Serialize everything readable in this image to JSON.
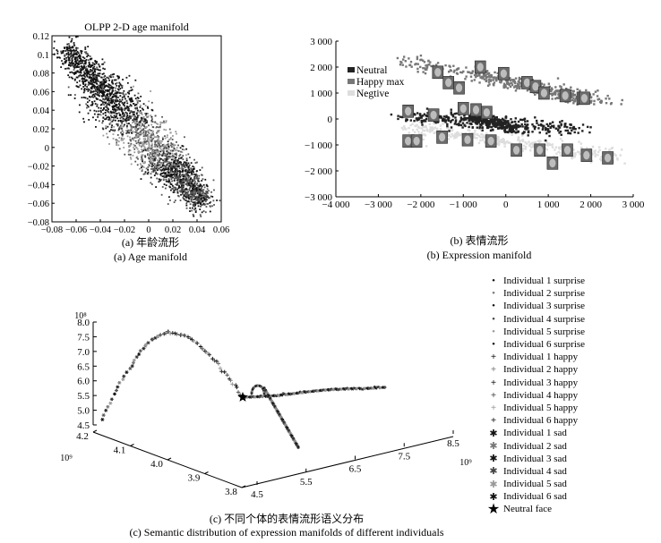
{
  "panel_a": {
    "title": "OLPP 2-D age manifold",
    "caption_cn": "(a) 年龄流形",
    "caption_en": "(a) Age manifold"
  },
  "panel_b": {
    "caption_cn": "(b) 表情流形",
    "caption_en": "(b) Expression manifold"
  },
  "panel_c": {
    "caption_cn": "(c) 不同个体的表情流形语义分布",
    "caption_en": "(c) Semantic distribution of expression manifolds of different individuals"
  },
  "chart_data": [
    {
      "type": "scatter",
      "title": "OLPP 2-D age manifold",
      "xlim": [
        -0.08,
        0.06
      ],
      "ylim": [
        -0.08,
        0.12
      ],
      "x_ticks": [
        "−0.08",
        "−0.06",
        "−0.04",
        "−0.02",
        "0",
        "0.02",
        "0.04",
        "0.06"
      ],
      "y_ticks": [
        "0.12",
        "0.1",
        "0.08",
        "0.06",
        "0.04",
        "0.02",
        "0",
        "−0.02",
        "−0.04",
        "−0.06",
        "−0.08"
      ],
      "series_colors": [
        "#111111",
        "#555555",
        "#9a9a9a"
      ],
      "trend": {
        "x_start": -0.068,
        "y_start": 0.105,
        "x_end": 0.045,
        "y_end": -0.06
      },
      "grid": false
    },
    {
      "type": "scatter",
      "xlim": [
        -4000,
        3000
      ],
      "ylim": [
        -3000,
        3000
      ],
      "x_ticks": [
        "−4 000",
        "−3 000",
        "−2 000",
        "−1 000",
        "0",
        "1 000",
        "2 000",
        "3 000"
      ],
      "y_ticks": [
        "3 000",
        "2 000",
        "1 000",
        "0",
        "−1 000",
        "−2 000",
        "−3 000"
      ],
      "legend": [
        "Neutral",
        "Happy max",
        "Negtive"
      ],
      "legend_colors": [
        "#222222",
        "#777777",
        "#dddddd"
      ],
      "legend_position": "top-left",
      "face_thumbnails": [
        [
          -1600,
          1800
        ],
        [
          -1350,
          1400
        ],
        [
          -1100,
          1200
        ],
        [
          -600,
          2000
        ],
        [
          -50,
          1750
        ],
        [
          500,
          1400
        ],
        [
          700,
          1250
        ],
        [
          900,
          1000
        ],
        [
          1400,
          900
        ],
        [
          1800,
          800
        ],
        [
          1850,
          800
        ],
        [
          -2300,
          300
        ],
        [
          -1700,
          150
        ],
        [
          -1000,
          400
        ],
        [
          -700,
          350
        ],
        [
          -450,
          250
        ],
        [
          -2300,
          -850
        ],
        [
          -2100,
          -850
        ],
        [
          -1500,
          -700
        ],
        [
          -900,
          -800
        ],
        [
          -350,
          -850
        ],
        [
          250,
          -1200
        ],
        [
          800,
          -1200
        ],
        [
          1100,
          -1700
        ],
        [
          1900,
          -1400
        ],
        [
          1450,
          -1200
        ],
        [
          2400,
          -1500
        ]
      ]
    },
    {
      "type": "scatter",
      "x_ticks": [
        "4.5",
        "5.5",
        "6.5",
        "7.5",
        "8.5"
      ],
      "x_exponent": "10⁹",
      "y_ticks": [
        "4.2",
        "4.1",
        "4.0",
        "3.9",
        "3.8"
      ],
      "y_exponent": "10⁹",
      "z_ticks": [
        "8.0",
        "7.5",
        "7.0",
        "6.5",
        "6.0",
        "5.5",
        "5.0",
        "4.5"
      ],
      "z_exponent": "10⁸",
      "legend": [
        {
          "label": "Individual 1 surprise",
          "marker": "•"
        },
        {
          "label": "Individual 2 surprise",
          "marker": "•"
        },
        {
          "label": "Individual 3 surprise",
          "marker": "•"
        },
        {
          "label": "Individual 4 surprise",
          "marker": "•"
        },
        {
          "label": "Individual 5 surprise",
          "marker": "•"
        },
        {
          "label": "Individual 6 surprise",
          "marker": "•"
        },
        {
          "label": "Individual 1 happy",
          "marker": "+"
        },
        {
          "label": "Individual 2 happy",
          "marker": "+"
        },
        {
          "label": "Individual 3 happy",
          "marker": "+"
        },
        {
          "label": "Individual 4 happy",
          "marker": "+"
        },
        {
          "label": "Individual 5 happy",
          "marker": "+"
        },
        {
          "label": "Individual 6 happy",
          "marker": "+"
        },
        {
          "label": "Individual 1 sad",
          "marker": "✱"
        },
        {
          "label": "Individual 2 sad",
          "marker": "✱"
        },
        {
          "label": "Individual 3 sad",
          "marker": "✱"
        },
        {
          "label": "Individual 4 sad",
          "marker": "✱"
        },
        {
          "label": "Individual 5 sad",
          "marker": "✱"
        },
        {
          "label": "Individual 6 sad",
          "marker": "✱"
        },
        {
          "label": "Neutral face",
          "marker": "★"
        }
      ],
      "legend_colors": [
        "#111",
        "#777",
        "#111",
        "#444",
        "#999",
        "#111",
        "#111",
        "#777",
        "#111",
        "#444",
        "#999",
        "#111",
        "#111",
        "#777",
        "#111",
        "#444",
        "#999",
        "#111",
        "#000"
      ],
      "legend_position": "right"
    }
  ]
}
